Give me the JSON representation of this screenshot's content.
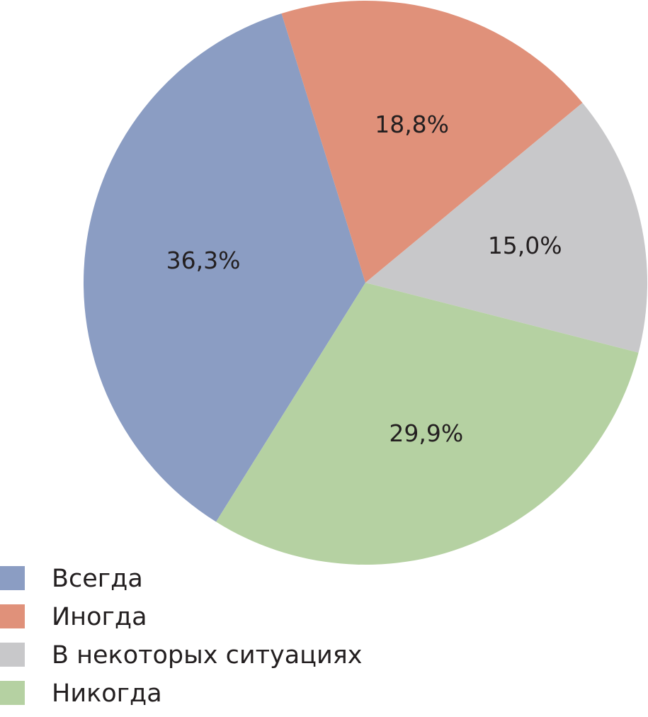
{
  "chart_data": {
    "type": "pie",
    "categories": [
      "Всегда",
      "Иногда",
      "В некоторых ситуациях",
      "Никогда"
    ],
    "values": [
      36.3,
      18.8,
      15.0,
      29.9
    ],
    "value_labels": [
      "36,3%",
      "18,8%",
      "15,0%",
      "29,9%"
    ],
    "colors": [
      "#8b9dc3",
      "#e0917a",
      "#c8c8ca",
      "#b5d1a2"
    ],
    "legend": "bottom-left"
  }
}
